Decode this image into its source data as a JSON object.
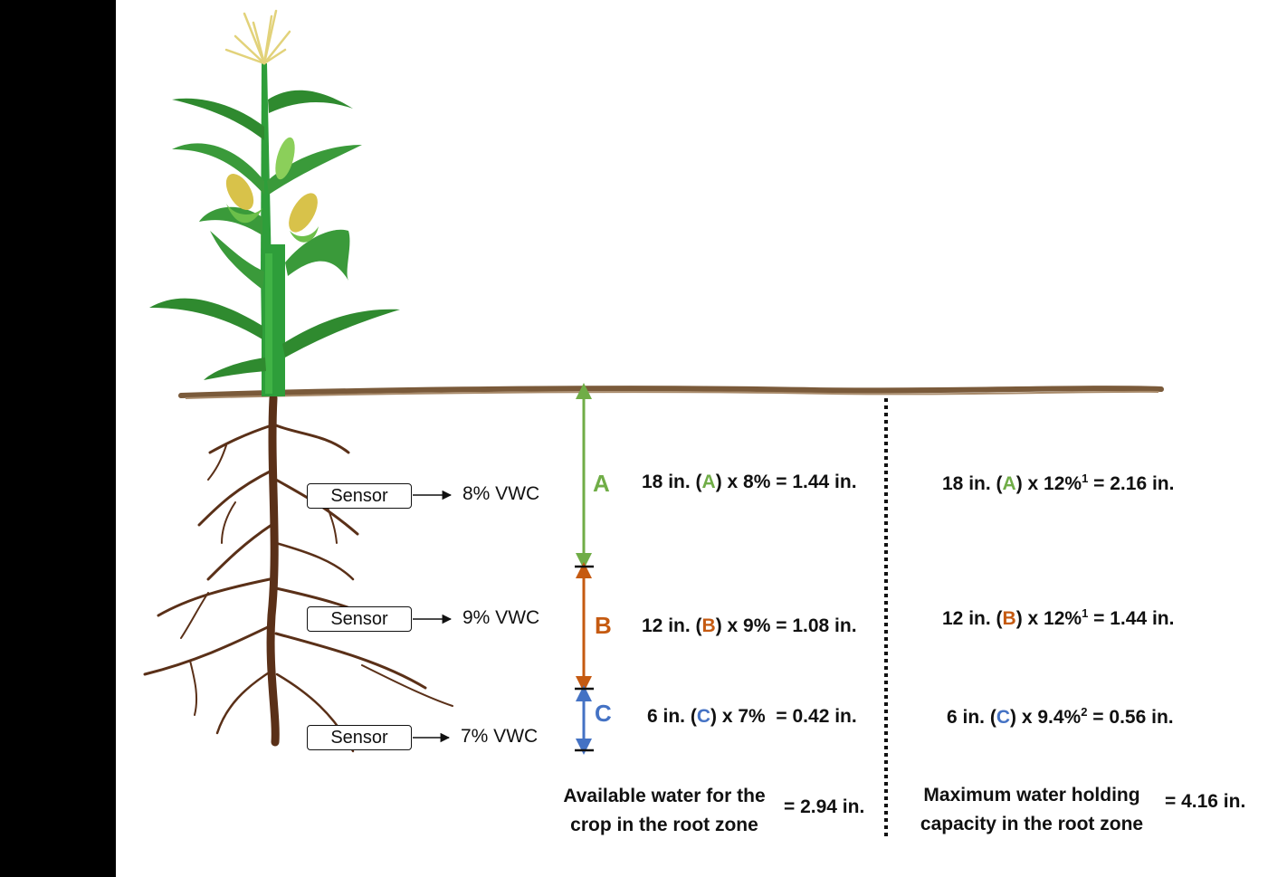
{
  "sensors": [
    {
      "label": "Sensor",
      "reading": "8% VWC"
    },
    {
      "label": "Sensor",
      "reading": "9% VWC"
    },
    {
      "label": "Sensor",
      "reading": "7% VWC"
    }
  ],
  "zones": [
    {
      "letter": "A",
      "color": "#70ad47",
      "depth": "18 in.",
      "vwc": "8%",
      "available": "1.44 in.",
      "capacity_pct": "12%",
      "capacity_sup": "1",
      "capacity": "2.16 in."
    },
    {
      "letter": "B",
      "color": "#c55a11",
      "depth": "12 in.",
      "vwc": "9%",
      "available": "1.08 in.",
      "capacity_pct": "12%",
      "capacity_sup": "1",
      "capacity": "1.44 in."
    },
    {
      "letter": "C",
      "color": "#4472c4",
      "depth": "6 in.",
      "vwc": "7%",
      "available": "0.42 in.",
      "capacity_pct": "9.4%",
      "capacity_sup": "2",
      "capacity": "0.56 in."
    }
  ],
  "totals": {
    "available_label_line1": "Available water for the",
    "available_label_line2": "crop in the root zone",
    "available_total": "= 2.94 in.",
    "capacity_label_line1": "Maximum water holding",
    "capacity_label_line2": "capacity in the root zone",
    "capacity_total": "= 4.16 in."
  },
  "colors": {
    "stalk": "#2e9e3a",
    "leaf": "#3a8f3a",
    "root": "#5a3018",
    "soil": "#7a5a3a",
    "tassel": "#e8dc8a"
  }
}
